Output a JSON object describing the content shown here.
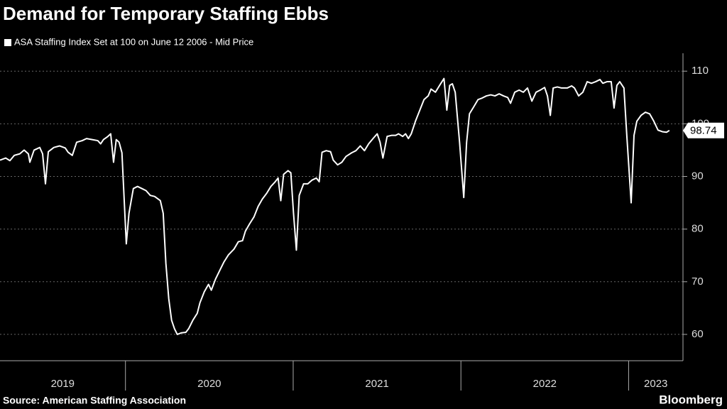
{
  "chart_data": {
    "type": "line",
    "title": "Demand for Temporary Staffing Ebbs",
    "source": "Source: American Staffing Association",
    "brand": "Bloomberg",
    "grid": true,
    "xlim": [
      2019.252,
      2023.324
    ],
    "ylim": [
      55,
      113.4
    ],
    "xticks": [
      2019,
      2020,
      2021,
      2022,
      2023
    ],
    "yticks": [
      60,
      70,
      80,
      90,
      100,
      110
    ],
    "x": [
      2019.252,
      2019.286,
      2019.311,
      2019.337,
      2019.37,
      2019.396,
      2019.421,
      2019.43,
      2019.455,
      2019.489,
      2019.506,
      2019.523,
      2019.54,
      2019.573,
      2019.607,
      2019.641,
      2019.658,
      2019.683,
      2019.709,
      2019.742,
      2019.768,
      2019.802,
      2019.835,
      2019.852,
      2019.869,
      2019.895,
      2019.912,
      2019.929,
      2019.945,
      2019.962,
      2019.979,
      2020.005,
      2020.021,
      2020.047,
      2020.072,
      2020.098,
      2020.123,
      2020.148,
      2020.174,
      2020.208,
      2020.225,
      2020.241,
      2020.258,
      2020.275,
      2020.292,
      2020.309,
      2020.334,
      2020.36,
      2020.377,
      2020.402,
      2020.428,
      2020.444,
      2020.47,
      2020.495,
      2020.512,
      2020.537,
      2020.563,
      2020.588,
      2020.614,
      2020.647,
      2020.673,
      2020.698,
      2020.715,
      2020.74,
      2020.766,
      2020.791,
      2020.816,
      2020.842,
      2020.867,
      2020.893,
      2020.91,
      2020.926,
      2020.943,
      2020.969,
      2020.986,
      2021.002,
      2021.019,
      2021.036,
      2021.062,
      2021.087,
      2021.112,
      2021.138,
      2021.155,
      2021.172,
      2021.197,
      2021.223,
      2021.239,
      2021.265,
      2021.29,
      2021.315,
      2021.349,
      2021.374,
      2021.4,
      2021.425,
      2021.45,
      2021.476,
      2021.501,
      2021.518,
      2021.535,
      2021.56,
      2021.586,
      2021.611,
      2021.628,
      2021.653,
      2021.67,
      2021.687,
      2021.704,
      2021.729,
      2021.755,
      2021.78,
      2021.805,
      2021.822,
      2021.848,
      2021.873,
      2021.899,
      2021.916,
      2021.933,
      2021.949,
      2021.966,
      2021.992,
      2022.017,
      2022.034,
      2022.051,
      2022.076,
      2022.102,
      2022.127,
      2022.152,
      2022.178,
      2022.203,
      2022.228,
      2022.254,
      2022.279,
      2022.296,
      2022.321,
      2022.347,
      2022.372,
      2022.397,
      2022.423,
      2022.448,
      2022.473,
      2022.499,
      2022.516,
      2022.533,
      2022.55,
      2022.575,
      2022.6,
      2022.634,
      2022.66,
      2022.677,
      2022.702,
      2022.727,
      2022.753,
      2022.778,
      2022.803,
      2022.829,
      2022.846,
      2022.871,
      2022.896,
      2022.913,
      2022.93,
      2022.947,
      2022.972,
      2022.989,
      2023.015,
      2023.032,
      2023.049,
      2023.074,
      2023.1,
      2023.125,
      2023.15,
      2023.175,
      2023.201,
      2023.226,
      2023.243
    ],
    "series": [
      {
        "name": "ASA Staffing Index Set at 100 on June 12 2006 - Mid Price",
        "color": "#ffffff",
        "values": [
          93.1,
          93.5,
          93,
          94,
          94.3,
          95,
          94.3,
          92.7,
          95,
          95.5,
          94.3,
          88.6,
          94.7,
          95.5,
          95.8,
          95.4,
          94.6,
          94,
          96.5,
          96.8,
          97.2,
          97,
          96.8,
          96.2,
          97,
          97.6,
          98.1,
          92.7,
          97,
          96.5,
          94.5,
          77.2,
          83,
          87.7,
          88.1,
          87.7,
          87.3,
          86.4,
          86.2,
          85.4,
          83,
          73.5,
          66.8,
          62.7,
          61.1,
          60,
          60.3,
          60.4,
          61.1,
          62.7,
          64,
          66,
          68.1,
          69.5,
          68.4,
          70.5,
          72.2,
          73.8,
          75.1,
          76.2,
          77.6,
          77.8,
          79.6,
          81,
          82.3,
          84.3,
          85.7,
          86.8,
          88.1,
          89,
          89.7,
          85.4,
          90.4,
          91.1,
          90.7,
          83,
          76,
          86.4,
          88.6,
          88.6,
          89.3,
          89.7,
          89,
          94.6,
          94.9,
          94.7,
          93.1,
          92.2,
          92.7,
          93.8,
          94.5,
          94.9,
          95.8,
          94.9,
          96.2,
          97.2,
          98.1,
          96.5,
          93.5,
          97.6,
          97.8,
          97.8,
          98.1,
          97.6,
          98.1,
          97.2,
          98.1,
          100.5,
          102.6,
          104.6,
          105.3,
          106.6,
          106,
          107.3,
          108.6,
          102.6,
          107.3,
          107.6,
          106,
          96.5,
          86,
          96.5,
          101.9,
          103.2,
          104.6,
          104.9,
          105.3,
          105.5,
          105.3,
          105.7,
          105.3,
          105,
          103.9,
          106,
          106.4,
          106,
          106.8,
          104.3,
          106,
          106.4,
          106.9,
          105.3,
          101.6,
          106.8,
          107,
          106.8,
          106.8,
          107.2,
          106.8,
          105.3,
          106,
          108,
          107.7,
          108,
          108.4,
          107.7,
          108,
          108,
          103,
          107.3,
          108,
          106.8,
          97.8,
          85,
          97.8,
          100.5,
          101.6,
          102.2,
          101.9,
          100.5,
          98.8,
          98.5,
          98.4,
          98.74
        ]
      }
    ]
  }
}
